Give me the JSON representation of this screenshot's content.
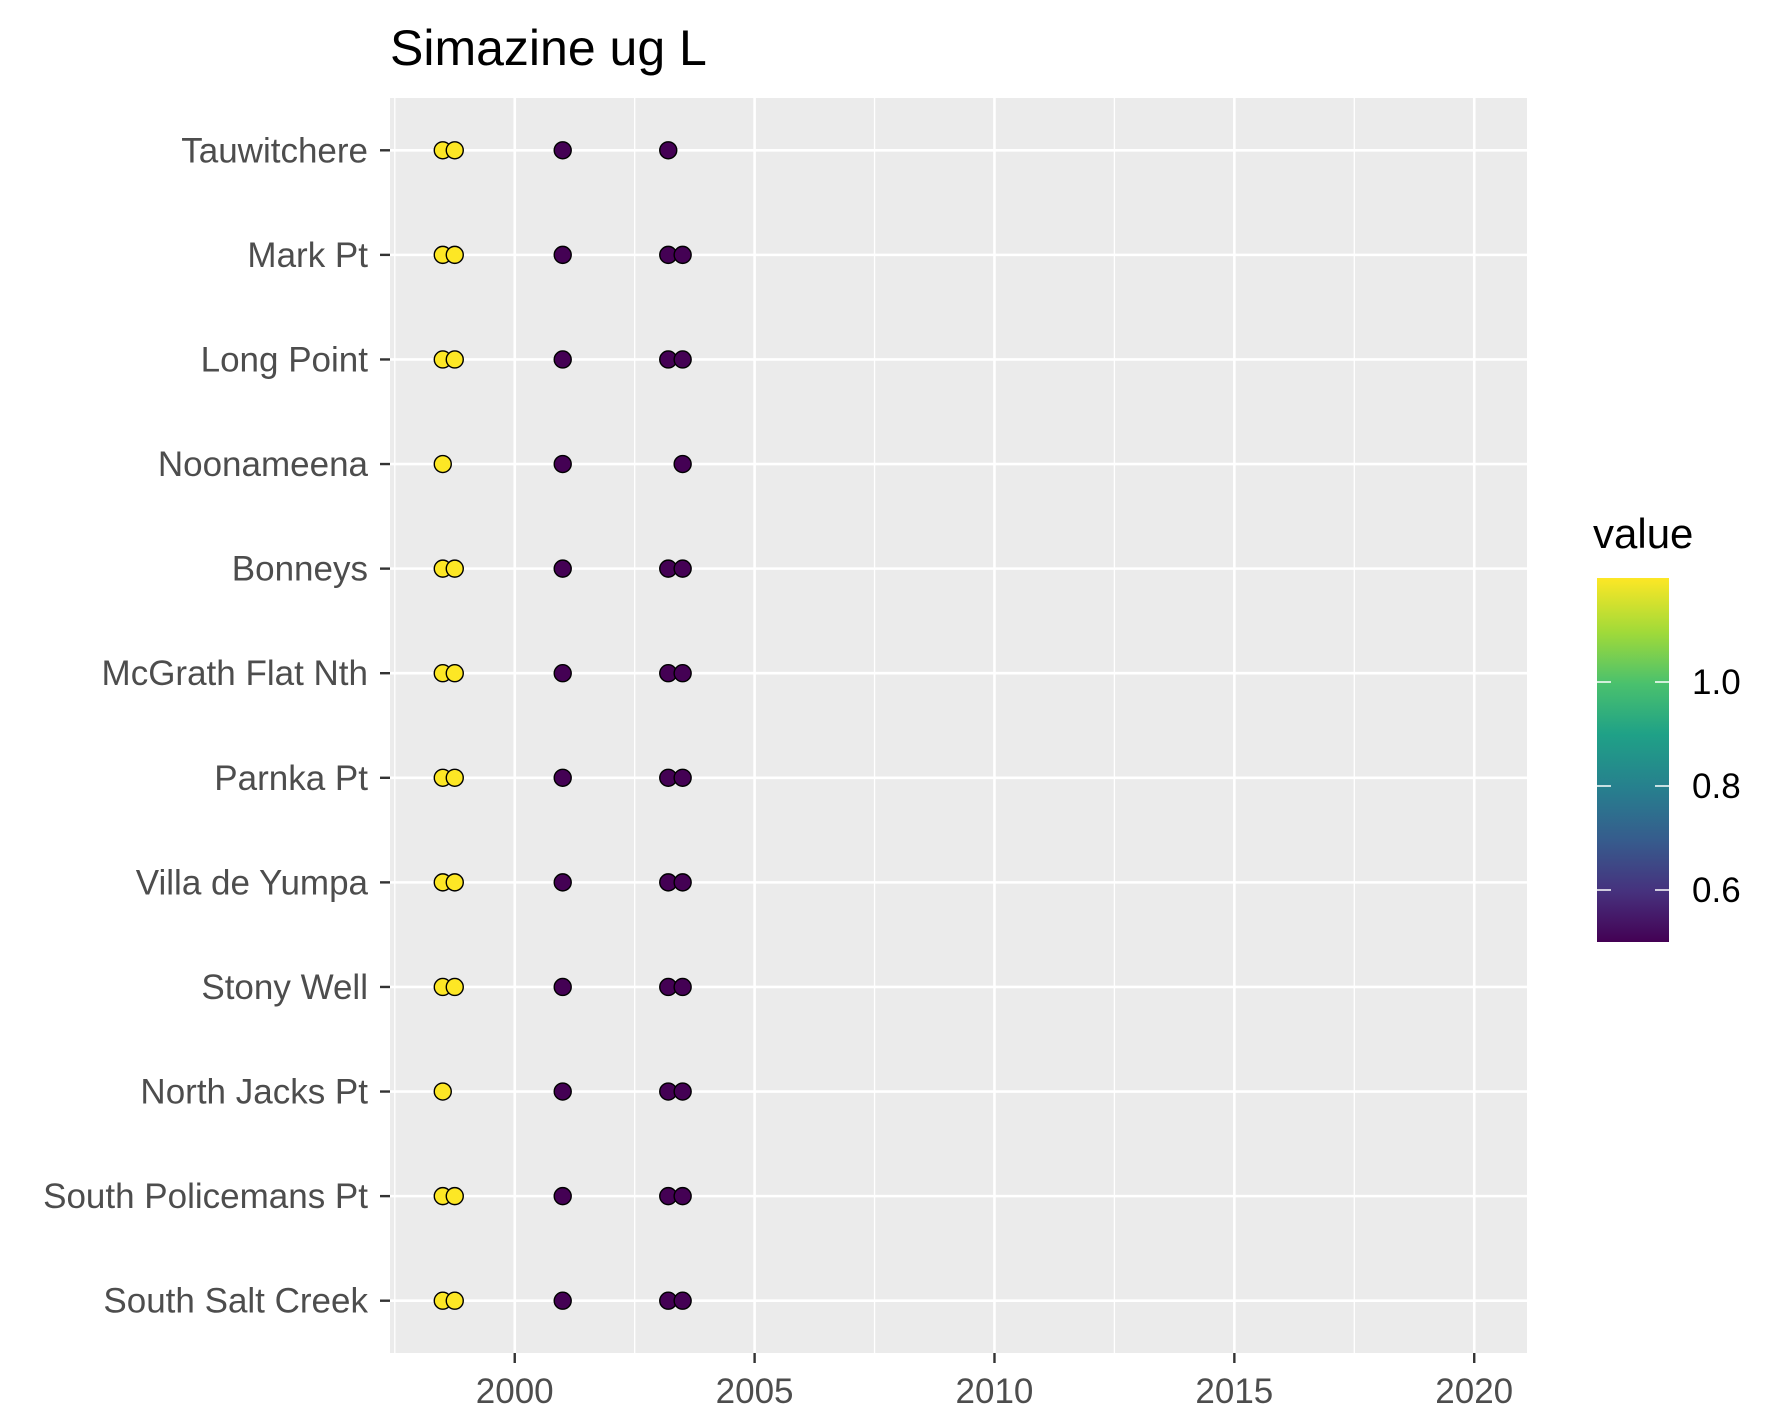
{
  "chart_data": {
    "type": "scatter",
    "title": "Simazine ug L",
    "xlabel": "",
    "ylabel": "",
    "xlim": [
      1997.4,
      2021.1
    ],
    "x_ticks": [
      "2000",
      "2005",
      "2010",
      "2015",
      "2020"
    ],
    "categories": [
      "Tauwitchere",
      "Mark Pt",
      "Long Point",
      "Noonameena",
      "Bonneys",
      "McGrath Flat Nth",
      "Parnka Pt",
      "Villa de Yumpa",
      "Stony Well",
      "North Jacks Pt",
      "South Policemans Pt",
      "South Salt Creek"
    ],
    "points": [
      {
        "site": "Tauwitchere",
        "x": [
          1998.5,
          1998.75,
          2001.0,
          2003.2
        ],
        "value": [
          1.2,
          1.2,
          0.5,
          0.5
        ]
      },
      {
        "site": "Mark Pt",
        "x": [
          1998.5,
          1998.75,
          2001.0,
          2003.2,
          2003.5
        ],
        "value": [
          1.2,
          1.2,
          0.5,
          0.5,
          0.5
        ]
      },
      {
        "site": "Long Point",
        "x": [
          1998.5,
          1998.75,
          2001.0,
          2003.2,
          2003.5
        ],
        "value": [
          1.2,
          1.2,
          0.5,
          0.5,
          0.5
        ]
      },
      {
        "site": "Noonameena",
        "x": [
          1998.5,
          2001.0,
          2003.5
        ],
        "value": [
          1.2,
          0.5,
          0.5
        ]
      },
      {
        "site": "Bonneys",
        "x": [
          1998.5,
          1998.75,
          2001.0,
          2003.2,
          2003.5
        ],
        "value": [
          1.2,
          1.2,
          0.5,
          0.5,
          0.5
        ]
      },
      {
        "site": "McGrath Flat Nth",
        "x": [
          1998.5,
          1998.75,
          2001.0,
          2003.2,
          2003.5
        ],
        "value": [
          1.2,
          1.2,
          0.5,
          0.5,
          0.5
        ]
      },
      {
        "site": "Parnka Pt",
        "x": [
          1998.5,
          1998.75,
          2001.0,
          2003.2,
          2003.5
        ],
        "value": [
          1.2,
          1.2,
          0.5,
          0.5,
          0.5
        ]
      },
      {
        "site": "Villa de Yumpa",
        "x": [
          1998.5,
          1998.75,
          2001.0,
          2003.2,
          2003.5
        ],
        "value": [
          1.2,
          1.2,
          0.5,
          0.5,
          0.5
        ]
      },
      {
        "site": "Stony Well",
        "x": [
          1998.5,
          1998.75,
          2001.0,
          2003.2,
          2003.5
        ],
        "value": [
          1.2,
          1.2,
          0.5,
          0.5,
          0.5
        ]
      },
      {
        "site": "North Jacks Pt",
        "x": [
          1998.5,
          2001.0,
          2003.2,
          2003.5
        ],
        "value": [
          1.2,
          0.5,
          0.5,
          0.5
        ]
      },
      {
        "site": "South Policemans Pt",
        "x": [
          1998.5,
          1998.75,
          2001.0,
          2003.2,
          2003.5
        ],
        "value": [
          1.2,
          1.2,
          0.5,
          0.5,
          0.5
        ]
      },
      {
        "site": "South Salt Creek",
        "x": [
          1998.5,
          1998.75,
          2001.0,
          2003.2,
          2003.5
        ],
        "value": [
          1.2,
          1.2,
          0.5,
          0.5,
          0.5
        ]
      }
    ],
    "legend": {
      "title": "value",
      "placement": "right",
      "range": [
        0.5,
        1.2
      ],
      "ticks": [
        "1.0",
        "0.8",
        "0.6"
      ],
      "colormap": "viridis"
    },
    "grid": true,
    "colors": {
      "panel_background": "#ebebeb",
      "grid": "#ffffff",
      "low": "#440154",
      "high": "#fde725"
    }
  }
}
